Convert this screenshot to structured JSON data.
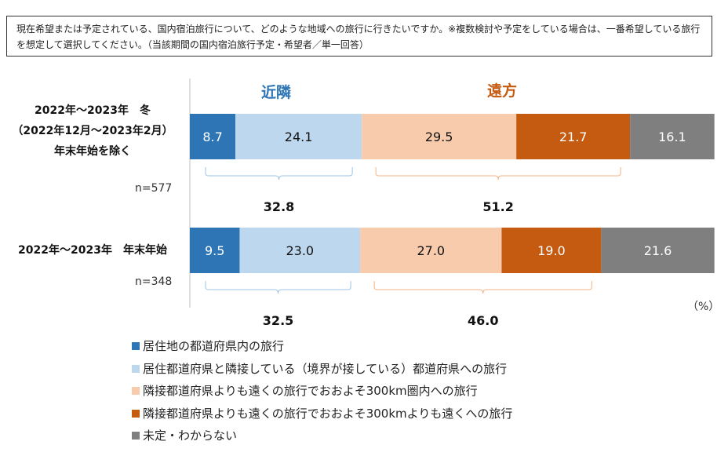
{
  "question": "現在希望または予定されている、国内宿泊旅行について、どのような地域への旅行に行きたいですか。※複数検討や予定をしている場合は、一番希望している旅行を想定して選択してください。（当該期間の国内宿泊旅行予定・希望者／単一回答）",
  "chart_data": {
    "type": "stacked-bar-horizontal",
    "xlim": [
      0,
      100
    ],
    "unit": "（%）",
    "group_labels": {
      "near": "近隣",
      "far": "遠方"
    },
    "group_colors": {
      "near": "#2e75b6",
      "far": "#c55a11"
    },
    "categories": [
      {
        "label_lines": [
          "2022年～2023年　冬",
          "（2022年12月～2023年2月）",
          "年末年始を除く"
        ],
        "n": "n=577",
        "near_total": "32.8",
        "far_total": "51.2"
      },
      {
        "label_lines": [
          "2022年～2023年　年末年始"
        ],
        "n": "n=348",
        "near_total": "32.5",
        "far_total": "46.0"
      }
    ],
    "series": [
      {
        "name": "居住地の都道府県内の旅行",
        "color": "#2e75b6",
        "text_color": "#ffffff",
        "values": [
          8.7,
          9.5
        ]
      },
      {
        "name": "居住都道府県と隣接している（境界が接している）都道府県への旅行",
        "color": "#bdd7ee",
        "text_color": "#111111",
        "values": [
          24.1,
          23.0
        ]
      },
      {
        "name": "隣接都道府県よりも遠くの旅行でおおよそ300km圏内への旅行",
        "color": "#f8cbad",
        "text_color": "#111111",
        "values": [
          29.5,
          27.0
        ]
      },
      {
        "name": "隣接都道府県よりも遠くの旅行でおおよそ300kmよりも遠くへの旅行",
        "color": "#c55a11",
        "text_color": "#ffffff",
        "values": [
          21.7,
          19.0
        ]
      },
      {
        "name": "未定・わからない",
        "color": "#7f7f7f",
        "text_color": "#ffffff",
        "values": [
          16.1,
          21.6
        ]
      }
    ]
  }
}
